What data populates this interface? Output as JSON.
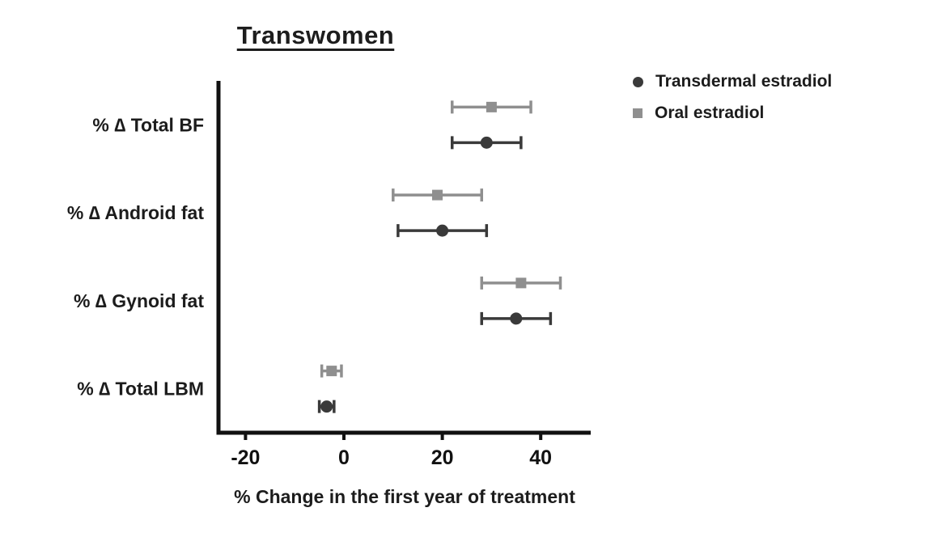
{
  "chart": {
    "title": "Transwomen",
    "xlabel": "% Change in the first year of treatment"
  },
  "chart_data": {
    "type": "scatter",
    "variant": "horizontal-dot-plot-with-error-bars",
    "title": "Transwomen",
    "xlabel": "% Change in the first year of treatment",
    "categories": [
      "% ∆ Total BF",
      "% ∆ Android fat",
      "% ∆ Gynoid fat",
      "% ∆ Total LBM"
    ],
    "xticks": [
      -20,
      0,
      20,
      40
    ],
    "xlim": [
      -26,
      50
    ],
    "grid": false,
    "legend_position": "top-right",
    "axis_color": "#111111",
    "series": [
      {
        "name": "Transdermal estradiol",
        "marker": "circle",
        "color": "#3a3a3a",
        "values": [
          29,
          20,
          35,
          -3.5
        ],
        "ci_low": [
          22,
          11,
          28,
          -5
        ],
        "ci_high": [
          36,
          29,
          42,
          -2
        ]
      },
      {
        "name": "Oral estradiol",
        "marker": "square",
        "color": "#8f8f8f",
        "values": [
          30,
          19,
          36,
          -2.5
        ],
        "ci_low": [
          22,
          10,
          28,
          -4.5
        ],
        "ci_high": [
          38,
          28,
          44,
          -0.5
        ]
      }
    ]
  }
}
